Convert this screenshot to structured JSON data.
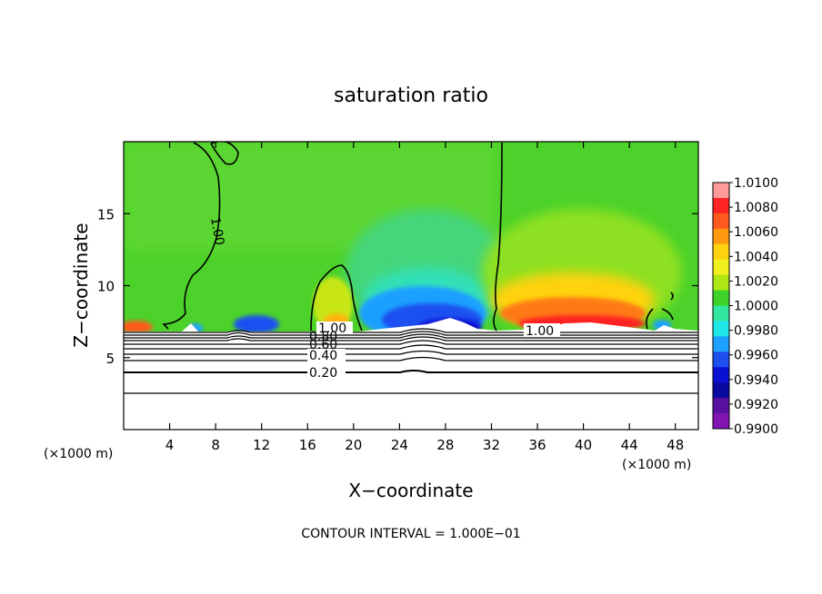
{
  "chart_data": {
    "type": "heatmap",
    "title": "saturation ratio",
    "xlabel": "X−coordinate",
    "ylabel": "Z−coordinate",
    "x_unit_label": "(×1000 m)",
    "xlim": [
      0,
      50
    ],
    "ylim": [
      0,
      20
    ],
    "x_ticks": [
      4,
      8,
      12,
      16,
      20,
      24,
      28,
      32,
      36,
      40,
      44,
      48
    ],
    "x_tick_labels": [
      "4",
      "8",
      "12",
      "16",
      "20",
      "24",
      "28",
      "32",
      "36",
      "40",
      "44",
      "48"
    ],
    "y_ticks": [
      5,
      10,
      15
    ],
    "y_tick_labels": [
      "5",
      "10",
      "15"
    ],
    "colorbar": {
      "min": 0.99,
      "max": 1.01,
      "labels": [
        "1.0100",
        "1.0080",
        "1.0060",
        "1.0040",
        "1.0020",
        "1.0000",
        "0.9980",
        "0.9960",
        "0.9940",
        "0.9920",
        "0.9900"
      ],
      "colors": [
        "#ff9a9a",
        "#ff2424",
        "#ff5a1e",
        "#ff9a10",
        "#ffd210",
        "#f0f01e",
        "#aee614",
        "#3cd228",
        "#32e6a0",
        "#1ee6e6",
        "#1ea0ff",
        "#1e50f0",
        "#0a10d2",
        "#0a0aa0",
        "#5a10a0",
        "#8214b4"
      ]
    },
    "contour_labels": [
      "1.00",
      "1.00",
      "1.00",
      "0.80",
      "0.60",
      "0.40",
      "0.20"
    ],
    "contour_interval_text": "CONTOUR INTERVAL = 1.000E−01",
    "field_regions": [
      {
        "x": [
          0,
          50
        ],
        "z": [
          6.5,
          20
        ],
        "value": 1.0005
      },
      {
        "x": [
          6,
          20
        ],
        "z": [
          6.5,
          13
        ],
        "value": 0.9994
      },
      {
        "x": [
          21,
          32
        ],
        "z": [
          6.5,
          11
        ],
        "value": 0.9925
      },
      {
        "x": [
          32,
          46
        ],
        "z": [
          6.5,
          11
        ],
        "value": 1.006
      },
      {
        "x": [
          0,
          50
        ],
        "z": [
          0,
          6.5
        ],
        "value": null
      }
    ]
  }
}
